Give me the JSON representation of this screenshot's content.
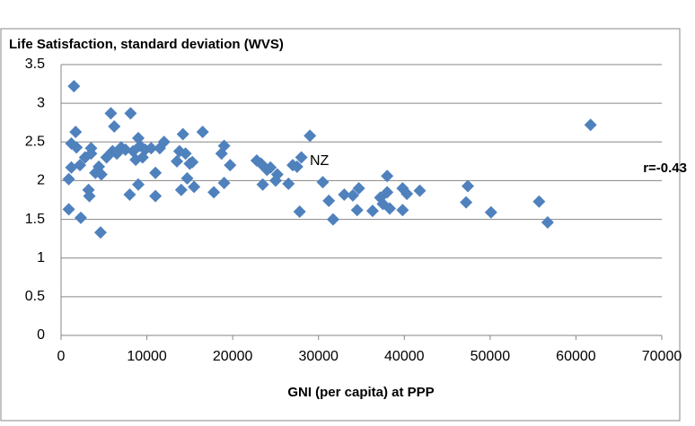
{
  "chart_data": {
    "type": "scatter",
    "y_label": "Life Satisfaction, standard deviation (WVS)",
    "x_label": "GNI (per capita) at PPP",
    "annotations": [
      "NZ",
      "r=-0.43"
    ],
    "color": "#4f81bd",
    "x": [
      1500,
      900,
      900,
      1200,
      1200,
      1700,
      1800,
      2300,
      2200,
      2800,
      3200,
      3300,
      3500,
      3500,
      4000,
      4400,
      4600,
      4700,
      5300,
      5800,
      6000,
      6200,
      6500,
      7000,
      7500,
      8000,
      8100,
      8400,
      8700,
      9000,
      9000,
      9200,
      9500,
      9800,
      10500,
      11000,
      11000,
      11500,
      12000,
      13500,
      13800,
      14000,
      14200,
      14500,
      14700,
      15000,
      15300,
      15500,
      16500,
      17800,
      18700,
      19000,
      19000,
      19700,
      22800,
      23300,
      23500,
      24000,
      24400,
      25000,
      25200,
      26500,
      27000,
      27500,
      27800,
      28000,
      29000,
      30500,
      31200,
      31700,
      33000,
      34000,
      34700,
      34500,
      36300,
      37200,
      37500,
      38000,
      38000,
      38300,
      39800,
      39800,
      40300,
      41800,
      47200,
      47400,
      50100,
      55700,
      56700,
      61700
    ],
    "values": [
      3.22,
      1.63,
      2.02,
      2.17,
      2.48,
      2.63,
      2.43,
      1.52,
      2.2,
      2.3,
      1.88,
      1.8,
      2.42,
      2.35,
      2.1,
      2.18,
      1.33,
      2.08,
      2.3,
      2.87,
      2.38,
      2.7,
      2.35,
      2.43,
      2.4,
      1.82,
      2.87,
      2.38,
      2.27,
      2.55,
      1.95,
      2.45,
      2.3,
      2.4,
      2.42,
      1.8,
      2.1,
      2.42,
      2.5,
      2.25,
      2.38,
      1.88,
      2.6,
      2.35,
      2.03,
      2.22,
      2.24,
      1.92,
      2.63,
      1.85,
      2.35,
      2.45,
      1.97,
      2.2,
      2.26,
      2.22,
      1.95,
      2.14,
      2.17,
      2.0,
      2.08,
      1.96,
      2.2,
      2.18,
      1.6,
      2.3,
      2.58,
      1.98,
      1.74,
      1.5,
      1.82,
      1.81,
      1.9,
      1.62,
      1.61,
      1.78,
      1.7,
      2.06,
      1.85,
      1.64,
      1.9,
      1.62,
      1.83,
      1.87,
      1.72,
      1.93,
      1.59,
      1.73,
      1.46,
      2.72
    ],
    "xlim": [
      0,
      70000
    ],
    "xticks": [
      0,
      10000,
      20000,
      30000,
      40000,
      50000,
      60000,
      70000
    ],
    "ylim": [
      0,
      3.5
    ],
    "yticks": [
      0,
      0.5,
      1,
      1.5,
      2,
      2.5,
      3,
      3.5
    ],
    "grid": true
  }
}
